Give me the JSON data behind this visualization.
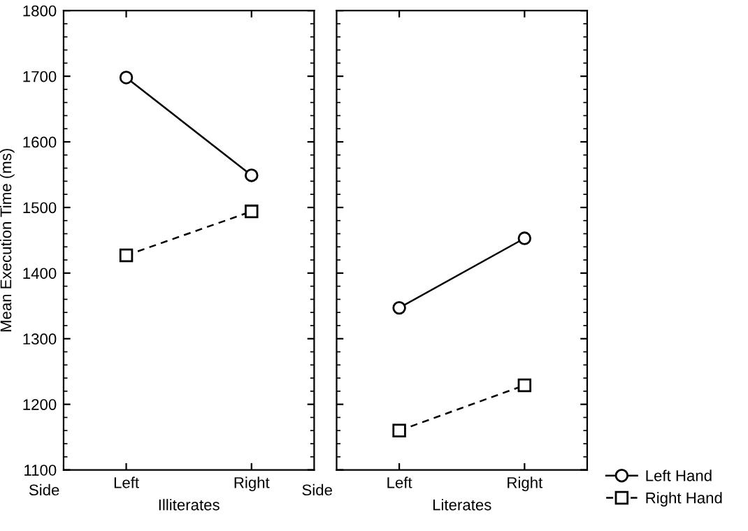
{
  "chart_data": [
    {
      "type": "line",
      "xlabel": "Illiterates",
      "ylabel": "Mean Execution Time (ms)",
      "categories": [
        "Left",
        "Right"
      ],
      "annotations": [
        "Side"
      ],
      "ylim": [
        1100,
        1800
      ],
      "yticks": [
        1100,
        1200,
        1300,
        1400,
        1500,
        1600,
        1700,
        1800
      ],
      "grid": false,
      "series": [
        {
          "color": "#000000",
          "marker": "circle",
          "line_style": "solid",
          "values": [
            1698,
            1549
          ]
        },
        {
          "color": "#000000",
          "marker": "square",
          "line_style": "dashed",
          "values": [
            1427,
            1494
          ]
        }
      ]
    },
    {
      "type": "line",
      "xlabel": "Literates",
      "categories": [
        "Left",
        "Right"
      ],
      "annotations": [
        "Side"
      ],
      "ylim": [
        1100,
        1800
      ],
      "yticks": [
        1100,
        1200,
        1300,
        1400,
        1500,
        1600,
        1700,
        1800
      ],
      "tick_labels": "x",
      "grid": false,
      "legend": "bottom right",
      "series": [
        {
          "name": "Left Hand",
          "color": "#000000",
          "marker": "circle",
          "line_style": "solid",
          "values": [
            1347,
            1453
          ]
        },
        {
          "name": "Right Hand",
          "color": "#000000",
          "marker": "square",
          "line_style": "dashed",
          "values": [
            1160,
            1229
          ]
        }
      ]
    }
  ]
}
